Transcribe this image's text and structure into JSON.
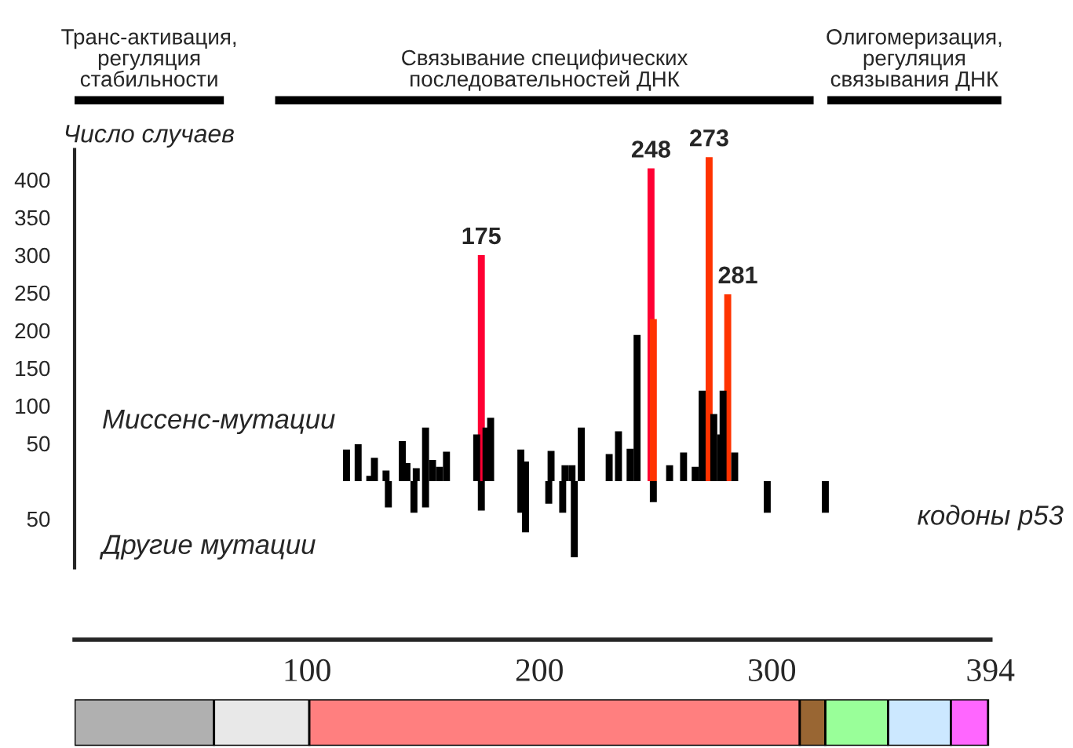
{
  "chart_data": [
    {
      "type": "bar",
      "xlabel": "кодоны p53",
      "ylabel": "Число случаев",
      "xlim": [
        0,
        394
      ],
      "xticks": [
        100,
        200,
        300,
        394
      ],
      "ylim": [
        -115,
        440
      ],
      "yticks": [
        {
          "value": -50,
          "label": "50"
        },
        50,
        100,
        150,
        200,
        250,
        300,
        350,
        400
      ],
      "grid": false,
      "series": [
        {
          "x": [
            117,
            122,
            127,
            129,
            134,
            141,
            143,
            147,
            151,
            154,
            157,
            160,
            173,
            175,
            177,
            179,
            192,
            194,
            205,
            211,
            214,
            218,
            230,
            234,
            239,
            242,
            248,
            249,
            256,
            262,
            267,
            270,
            273,
            275,
            278,
            279,
            281,
            284
          ],
          "values": [
            42,
            49,
            7,
            31,
            14,
            53,
            24,
            17,
            71,
            28,
            19,
            39,
            62,
            300,
            71,
            84,
            42,
            26,
            40,
            21,
            21,
            71,
            36,
            66,
            43,
            194,
            415,
            215,
            21,
            38,
            19,
            120,
            430,
            89,
            62,
            120,
            248,
            38
          ],
          "colors": [
            "#000000",
            "#000000",
            "#000000",
            "#000000",
            "#000000",
            "#000000",
            "#000000",
            "#000000",
            "#000000",
            "#000000",
            "#000000",
            "#000000",
            "#000000",
            "#ff0033",
            "#000000",
            "#000000",
            "#000000",
            "#000000",
            "#000000",
            "#000000",
            "#000000",
            "#000000",
            "#000000",
            "#000000",
            "#000000",
            "#000000",
            "#ff0033",
            "#ff3300",
            "#000000",
            "#000000",
            "#000000",
            "#000000",
            "#ff3300",
            "#000000",
            "#000000",
            "#000000",
            "#ff3300",
            "#000000"
          ]
        },
        {
          "color": "#000000",
          "x": [
            135,
            146,
            151,
            175,
            192,
            194,
            204,
            210,
            215,
            249,
            298,
            323
          ],
          "values": [
            -35,
            -42,
            -35,
            -39,
            -42,
            -68,
            -30,
            -42,
            -101,
            -28,
            -42,
            -42
          ]
        }
      ],
      "annotations": [
        "Миссенс-мутации",
        "Другие мутации",
        {
          "text": "175",
          "x": 175,
          "y": 300
        },
        {
          "text": "248",
          "x": 248,
          "y": 415
        },
        {
          "text": "273",
          "x": 273,
          "y": 430
        },
        {
          "text": "281",
          "x": 281,
          "y": 248
        },
        "Транс-активация,\nрегуляция\nстабильности",
        "Связывание специфических\nпоследовательностей ДНК",
        "Олигомеризация,\nрегуляция\nсвязывания ДНК"
      ]
    },
    {
      "type": "bar",
      "orientation": "horizontal",
      "stacked": true,
      "categories": [
        null
      ],
      "xlim": [
        0,
        394
      ],
      "series": [
        {
          "color": "#b0b0b0",
          "values": [
            60
          ]
        },
        {
          "color": "#e8e8e8",
          "values": [
            41
          ]
        },
        {
          "color": "#ff7f7f",
          "values": [
            211
          ]
        },
        {
          "color": "#996633",
          "values": [
            11
          ]
        },
        {
          "color": "#99ff99",
          "values": [
            27
          ]
        },
        {
          "color": "#cce8ff",
          "values": [
            27
          ]
        },
        {
          "color": "#ff66ff",
          "values": [
            16
          ]
        }
      ]
    }
  ]
}
